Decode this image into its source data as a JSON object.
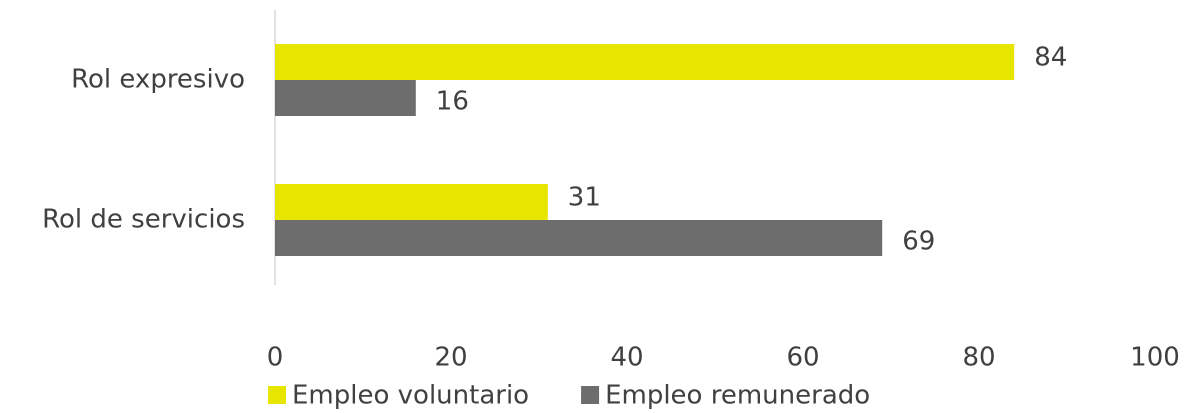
{
  "chart_data": {
    "type": "bar",
    "orientation": "horizontal",
    "categories": [
      "Rol expresivo",
      "Rol de servicios"
    ],
    "series": [
      {
        "name": "Empleo voluntario",
        "color": "#e6e600",
        "values": [
          84,
          31
        ]
      },
      {
        "name": "Empleo remunerado",
        "color": "#6d6d6d",
        "values": [
          16,
          69
        ]
      }
    ],
    "xlim": [
      0,
      100
    ],
    "xticks": [
      0,
      20,
      40,
      60,
      80,
      100
    ],
    "grid": false,
    "legend": "bottom"
  }
}
